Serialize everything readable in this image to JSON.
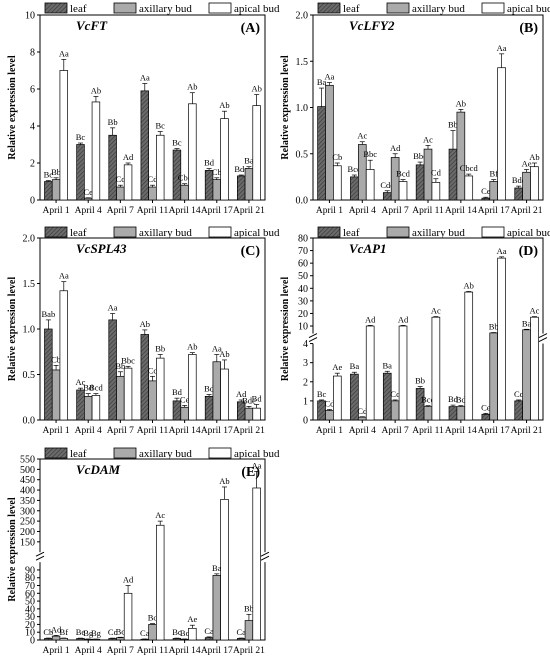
{
  "legend": {
    "leaf": "leaf",
    "axillary": "axillary bud",
    "apical": "apical bud"
  },
  "ylabel": "Relative expression level",
  "colors": {
    "leaf": "#555555",
    "axillary": "#aaaaaa",
    "apical": "#ffffff",
    "axis": "#000000"
  },
  "chart_data": [
    {
      "type": "bar",
      "title": "VcFT",
      "panel_letter": "(A)",
      "categories": [
        "April 1",
        "April 4",
        "April 7",
        "April 11",
        "April 14",
        "April 17",
        "April 21"
      ],
      "ylim": [
        0,
        10
      ],
      "yticks": [
        0,
        2,
        4,
        6,
        8,
        10
      ],
      "series": [
        {
          "name": "leaf",
          "values": [
            1.0,
            3.0,
            3.5,
            5.9,
            2.7,
            1.6,
            1.3
          ],
          "err": [
            0.05,
            0.08,
            0.4,
            0.4,
            0.08,
            0.1,
            0.05
          ],
          "labels": [
            "Bc",
            "Bc",
            "Bb",
            "Aa",
            "Bc",
            "Bd",
            "Bde"
          ]
        },
        {
          "name": "axillary bud",
          "values": [
            1.1,
            0.1,
            0.7,
            0.7,
            0.8,
            1.1,
            1.7
          ],
          "err": [
            0.1,
            0.02,
            0.1,
            0.1,
            0.08,
            0.1,
            0.1
          ],
          "labels": [
            "Bb",
            "Ce",
            "Cc",
            "Cd",
            "Cbc",
            "Cb",
            "Ba"
          ]
        },
        {
          "name": "apical bud",
          "values": [
            7.0,
            5.3,
            1.9,
            3.5,
            5.2,
            4.4,
            5.1
          ],
          "err": [
            0.6,
            0.3,
            0.1,
            0.2,
            0.6,
            0.4,
            0.6
          ],
          "labels": [
            "Aa",
            "Ab",
            "Ad",
            "Bc",
            "Ab",
            "Ab",
            "Ab"
          ]
        }
      ]
    },
    {
      "type": "bar",
      "title": "VcLFY2",
      "panel_letter": "(B)",
      "categories": [
        "April 1",
        "April 4",
        "April 7",
        "April 11",
        "April 14",
        "April 17",
        "April 21"
      ],
      "ylim": [
        0,
        2.0
      ],
      "yticks": [
        0.0,
        0.5,
        1.0,
        1.5,
        2.0
      ],
      "series": [
        {
          "name": "leaf",
          "values": [
            1.01,
            0.25,
            0.08,
            0.38,
            0.55,
            0.02,
            0.13
          ],
          "err": [
            0.2,
            0.02,
            0.02,
            0.03,
            0.2,
            0.01,
            0.02
          ],
          "labels": [
            "Ba",
            "Bcd",
            "Cde",
            "Bbc",
            "Bb",
            "Ce",
            "Bde"
          ]
        },
        {
          "name": "axillary bud",
          "values": [
            1.24,
            0.6,
            0.46,
            0.55,
            0.95,
            0.2,
            0.3
          ],
          "err": [
            0.03,
            0.03,
            0.04,
            0.04,
            0.03,
            0.02,
            0.03
          ],
          "labels": [
            "Aa",
            "Ac",
            "Ad",
            "Ac",
            "Ab",
            "Bf",
            "Ae"
          ]
        },
        {
          "name": "apical bud",
          "values": [
            0.37,
            0.33,
            0.2,
            0.19,
            0.26,
            1.43,
            0.36
          ],
          "err": [
            0.03,
            0.1,
            0.02,
            0.04,
            0.02,
            0.15,
            0.04
          ],
          "labels": [
            "Cb",
            "Bbc",
            "Bcd",
            "Cd",
            "Cbcd",
            "Aa",
            "Ab"
          ]
        }
      ]
    },
    {
      "type": "bar",
      "title": "VcSPL43",
      "panel_letter": "(C)",
      "categories": [
        "April 1",
        "April 4",
        "April 7",
        "April 11",
        "April 14",
        "April 17",
        "April 21"
      ],
      "ylim": [
        0,
        2.0
      ],
      "yticks": [
        0.0,
        0.5,
        1.0,
        1.5,
        2.0
      ],
      "series": [
        {
          "name": "leaf",
          "values": [
            1.0,
            0.33,
            1.1,
            0.94,
            0.21,
            0.26,
            0.2
          ],
          "err": [
            0.1,
            0.02,
            0.07,
            0.05,
            0.03,
            0.02,
            0.02
          ],
          "labels": [
            "Bab",
            "Ac",
            "Aa",
            "Ab",
            "Bd",
            "Bd",
            "Ad"
          ]
        },
        {
          "name": "axillary bud",
          "values": [
            0.55,
            0.26,
            0.48,
            0.43,
            0.14,
            0.64,
            0.13
          ],
          "err": [
            0.05,
            0.03,
            0.05,
            0.05,
            0.02,
            0.08,
            0.02
          ],
          "labels": [
            "Cb",
            "Bd",
            "Bb",
            "Cc",
            "Ce",
            "Aa",
            "Bde"
          ]
        },
        {
          "name": "apical bud",
          "values": [
            1.42,
            0.27,
            0.57,
            0.68,
            0.72,
            0.56,
            0.13
          ],
          "err": [
            0.1,
            0.02,
            0.02,
            0.04,
            0.02,
            0.1,
            0.04
          ],
          "labels": [
            "Aa",
            "Bcd",
            "Bbc",
            "Bb",
            "Ab",
            "Ab",
            "Bd"
          ]
        }
      ]
    },
    {
      "type": "bar",
      "title": "VcAP1",
      "panel_letter": "(D)",
      "categories": [
        "April 1",
        "April 4",
        "April 7",
        "April 11",
        "April 14",
        "April 17",
        "April 21"
      ],
      "broken_axis": {
        "lower": [
          0,
          4
        ],
        "upper": [
          4,
          80
        ]
      },
      "yticks_lower": [
        0,
        1,
        2,
        3,
        4
      ],
      "yticks_upper": [
        10,
        20,
        30,
        40,
        50,
        60,
        70,
        80
      ],
      "series": [
        {
          "name": "leaf",
          "values": [
            1.0,
            2.4,
            2.45,
            1.65,
            0.7,
            0.3,
            1.0
          ],
          "err": [
            0.05,
            0.1,
            0.1,
            0.1,
            0.08,
            0.05,
            0.05
          ],
          "labels": [
            "Bc",
            "Ba",
            "Ba",
            "Bb",
            "Bd",
            "Ce",
            "Cc"
          ]
        },
        {
          "name": "axillary bud",
          "values": [
            0.5,
            0.15,
            1.0,
            0.7,
            0.7,
            4.5,
            7.0
          ],
          "err": [
            0.05,
            0.02,
            0.05,
            0.05,
            0.05,
            0.3,
            0.4
          ],
          "labels": [
            "Cd",
            "Cd",
            "Cc",
            "Bcd",
            "Bd",
            "Bb",
            "Ba"
          ]
        },
        {
          "name": "apical bud",
          "values": [
            2.3,
            10.0,
            10.0,
            17.0,
            37.0,
            64.0,
            17.0
          ],
          "err": [
            0.15,
            0.5,
            0.5,
            0.5,
            0.5,
            1.0,
            0.5
          ],
          "labels": [
            "Ae",
            "Ad",
            "Ad",
            "Ac",
            "Ab",
            "Aa",
            "Ac"
          ]
        }
      ]
    },
    {
      "type": "bar",
      "title": "VcDAM",
      "panel_letter": "(E)",
      "categories": [
        "April 1",
        "April 4",
        "April 7",
        "April 11",
        "April 14",
        "April 17",
        "April 21"
      ],
      "broken_axis": {
        "lower": [
          0,
          100
        ],
        "upper": [
          100,
          550
        ]
      },
      "yticks_lower": [
        0,
        10,
        20,
        30,
        40,
        50,
        60,
        70,
        80,
        90
      ],
      "yticks_upper": [
        150,
        200,
        250,
        300,
        350,
        400,
        450,
        500,
        550
      ],
      "series": [
        {
          "name": "leaf",
          "values": [
            2,
            2,
            2,
            1,
            2,
            3,
            2
          ],
          "err": [
            0.5,
            0.4,
            0.4,
            0.3,
            0.4,
            1.0,
            0.5
          ],
          "labels": [
            "Cb",
            "Be",
            "Cc",
            "Ca",
            "Bc",
            "Ca",
            "Ca"
          ]
        },
        {
          "name": "axillary bud",
          "values": [
            5,
            1,
            3,
            20,
            1,
            83,
            25
          ],
          "err": [
            1,
            0.3,
            0.5,
            1,
            0.3,
            2,
            8
          ],
          "labels": [
            "Ad",
            "Bg",
            "Bc",
            "Bc",
            "Bc",
            "Ba",
            "Bb"
          ]
        },
        {
          "name": "apical bud",
          "values": [
            2,
            1,
            60,
            230,
            15,
            355,
            410
          ],
          "err": [
            0.5,
            0.2,
            10,
            20,
            4,
            60,
            80
          ],
          "labels": [
            "Bf",
            "Bg",
            "Ad",
            "Ac",
            "Ae",
            "Ab",
            "Aa"
          ]
        }
      ]
    }
  ]
}
